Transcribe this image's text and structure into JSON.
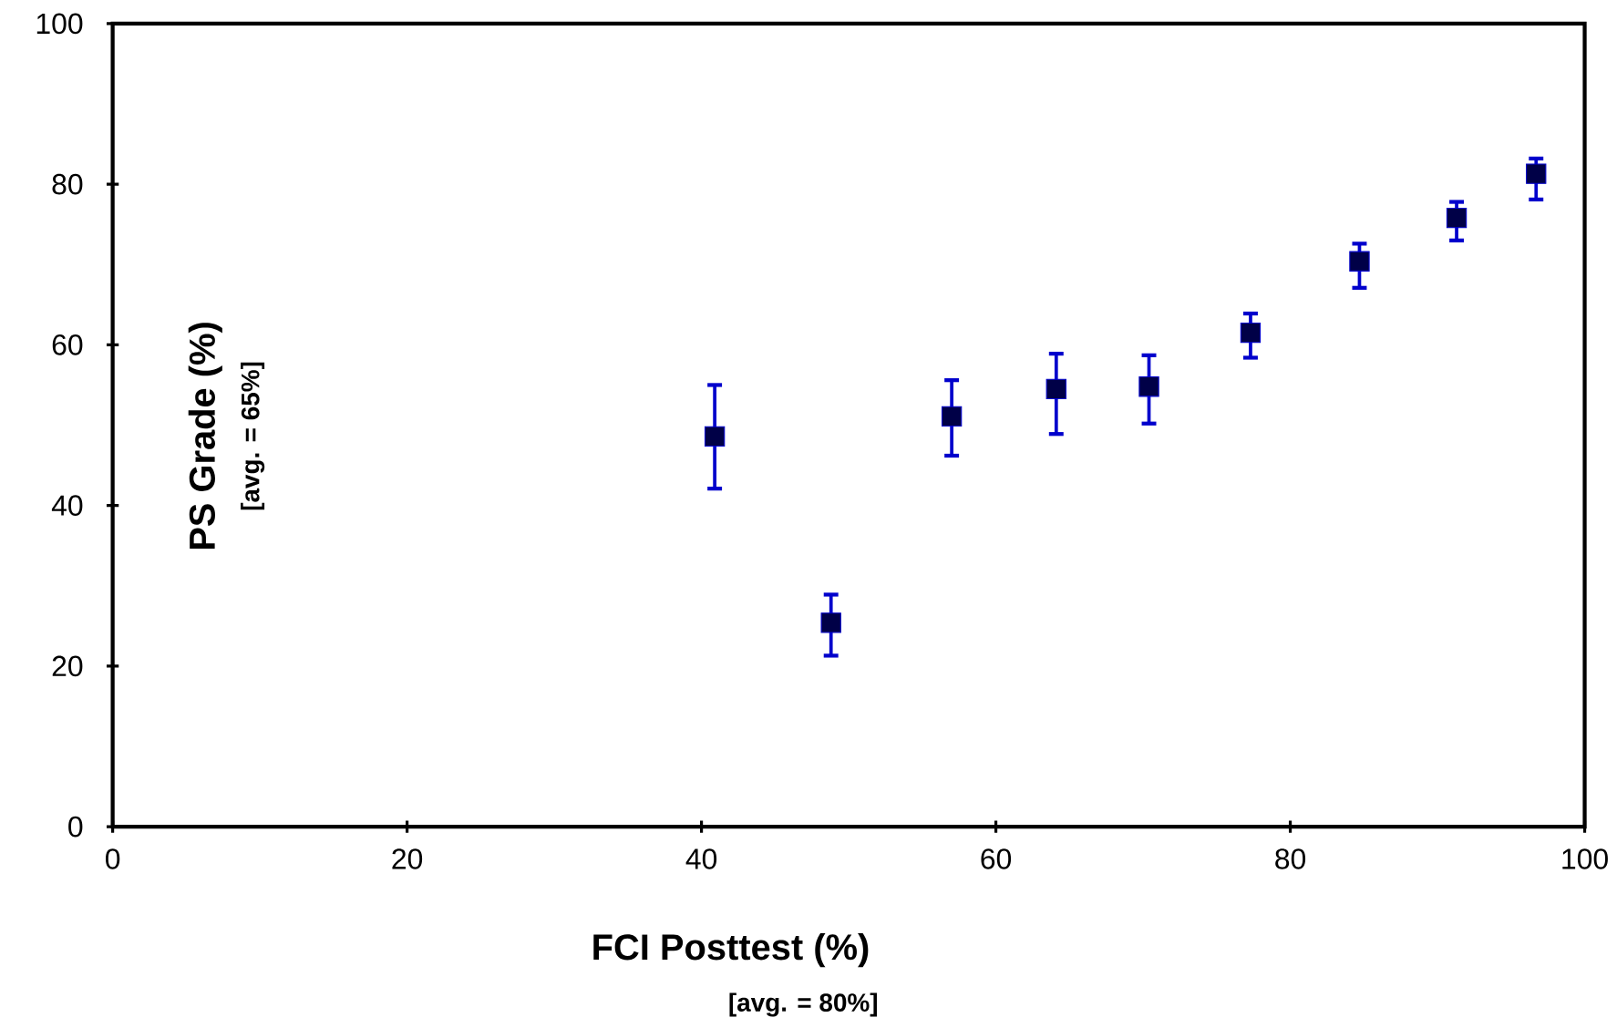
{
  "chart_data": {
    "type": "scatter",
    "xlabel": "FCI Posttest (%)",
    "ylabel": "PS Grade (%)",
    "annotations": [
      "[avg. = 65%]",
      "[avg. = 80%]"
    ],
    "x": [
      40.9,
      48.8,
      57.0,
      64.1,
      70.4,
      77.3,
      84.7,
      91.3,
      96.7
    ],
    "values": [
      48.6,
      25.4,
      51.1,
      54.5,
      54.8,
      61.5,
      70.4,
      75.8,
      81.3
    ],
    "errors": [
      [
        42.1,
        55.0
      ],
      [
        21.3,
        28.9
      ],
      [
        46.2,
        55.6
      ],
      [
        48.9,
        58.9
      ],
      [
        50.2,
        58.7
      ],
      [
        58.4,
        63.9
      ],
      [
        67.1,
        72.6
      ],
      [
        73.0,
        77.8
      ],
      [
        78.1,
        83.2
      ]
    ],
    "color": "#0000cc",
    "marker": "square",
    "xlim": [
      0,
      100
    ],
    "ylim": [
      0,
      100
    ],
    "xticks": [
      0,
      20,
      40,
      60,
      80,
      100
    ],
    "yticks": [
      0,
      20,
      40,
      60,
      80,
      100
    ]
  }
}
